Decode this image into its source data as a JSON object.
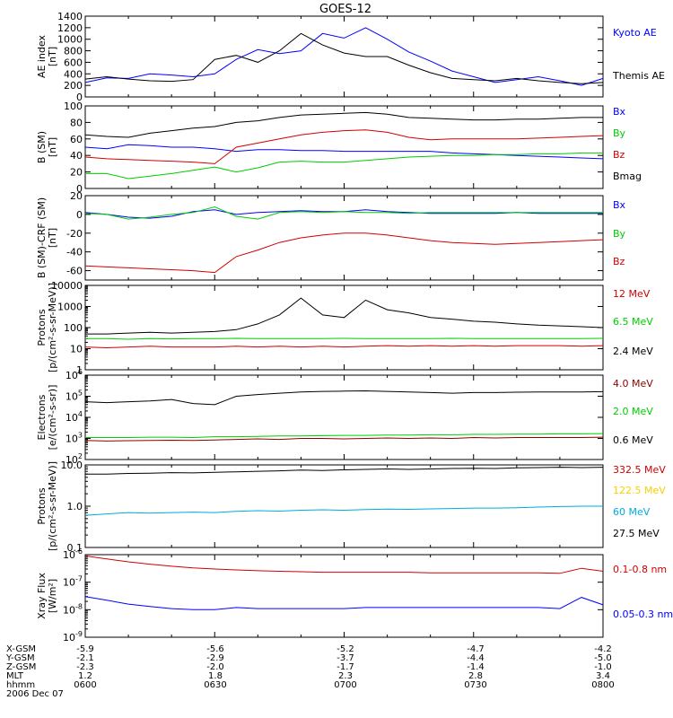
{
  "title": "GOES-12",
  "footer": {
    "date": "2006 Dec 07",
    "rows": [
      {
        "label": "X-GSM",
        "values": [
          "-5.9",
          "-5.6",
          "-5.2",
          "-4.7",
          "-4.2"
        ]
      },
      {
        "label": "Y-GSM",
        "values": [
          "-2.1",
          "-2.9",
          "-3.7",
          "-4.4",
          "-5.0"
        ]
      },
      {
        "label": "Z-GSM",
        "values": [
          "-2.3",
          "-2.0",
          "-1.7",
          "-1.4",
          "-1.0"
        ]
      },
      {
        "label": "MLT",
        "values": [
          "1.2",
          "1.8",
          "2.3",
          "2.8",
          "3.4"
        ]
      },
      {
        "label": "hhmm",
        "values": [
          "0600",
          "0630",
          "0700",
          "0730",
          "0800"
        ]
      }
    ]
  },
  "colors": {
    "black": "#000000",
    "blue": "#0000ff",
    "red": "#d00000",
    "green": "#00cc00",
    "cyan": "#00aadd",
    "yellow": "#f5d000",
    "darkred": "#8b0000"
  },
  "chart_data": [
    {
      "type": "line",
      "title": "GOES-12",
      "ylabel": [
        "AE index",
        "[nT]"
      ],
      "ylim": [
        0,
        1400
      ],
      "yticks": [
        {
          "v": 0,
          "label": "0"
        },
        {
          "v": 200,
          "label": "200"
        },
        {
          "v": 400,
          "label": "400"
        },
        {
          "v": 600,
          "label": "600"
        },
        {
          "v": 800,
          "label": "800"
        },
        {
          "v": 1000,
          "label": "1000"
        },
        {
          "v": 1200,
          "label": "1200"
        },
        {
          "v": 1400,
          "label": "1400"
        }
      ],
      "x_minutes": [
        0,
        5,
        10,
        15,
        20,
        25,
        30,
        35,
        40,
        45,
        50,
        55,
        60,
        65,
        70,
        75,
        80,
        85,
        90,
        95,
        100,
        105,
        110,
        115,
        120
      ],
      "series": [
        {
          "name": "Kyoto AE",
          "color": "blue",
          "values": [
            250,
            330,
            320,
            400,
            380,
            350,
            400,
            650,
            820,
            750,
            800,
            1100,
            1020,
            1200,
            1000,
            780,
            620,
            450,
            350,
            250,
            300,
            350,
            280,
            200,
            320
          ]
        },
        {
          "name": "Themis AE",
          "color": "black",
          "values": [
            310,
            350,
            310,
            280,
            270,
            300,
            650,
            720,
            600,
            800,
            1100,
            900,
            760,
            700,
            700,
            550,
            420,
            320,
            300,
            280,
            320,
            280,
            250,
            230,
            250
          ]
        }
      ]
    },
    {
      "type": "line",
      "ylabel": [
        "B (SM)",
        "[nT]"
      ],
      "ylim": [
        0,
        100
      ],
      "yticks": [
        {
          "v": 0,
          "label": "0"
        },
        {
          "v": 20,
          "label": "20"
        },
        {
          "v": 40,
          "label": "40"
        },
        {
          "v": 60,
          "label": "60"
        },
        {
          "v": 80,
          "label": "80"
        },
        {
          "v": 100,
          "label": "100"
        }
      ],
      "x_minutes": [
        0,
        5,
        10,
        15,
        20,
        25,
        30,
        35,
        40,
        45,
        50,
        55,
        60,
        65,
        70,
        75,
        80,
        85,
        90,
        95,
        100,
        105,
        110,
        115,
        120
      ],
      "series": [
        {
          "name": "Bx",
          "color": "blue",
          "values": [
            50,
            48,
            53,
            52,
            50,
            50,
            48,
            45,
            47,
            47,
            46,
            46,
            45,
            45,
            45,
            45,
            45,
            43,
            42,
            41,
            40,
            39,
            38,
            37,
            36
          ]
        },
        {
          "name": "By",
          "color": "green",
          "values": [
            18,
            18,
            12,
            15,
            18,
            22,
            26,
            20,
            25,
            32,
            33,
            32,
            32,
            34,
            36,
            38,
            39,
            40,
            40,
            41,
            41,
            42,
            42,
            43,
            43
          ]
        },
        {
          "name": "Bz",
          "color": "red",
          "values": [
            38,
            36,
            35,
            34,
            33,
            32,
            30,
            50,
            55,
            60,
            65,
            68,
            70,
            71,
            68,
            62,
            59,
            60,
            60,
            60,
            60,
            61,
            62,
            63,
            64
          ]
        },
        {
          "name": "Bmag",
          "color": "black",
          "values": [
            65,
            63,
            62,
            67,
            70,
            73,
            75,
            80,
            82,
            86,
            89,
            90,
            91,
            92,
            90,
            86,
            85,
            84,
            83,
            83,
            84,
            84,
            85,
            86,
            86
          ]
        }
      ]
    },
    {
      "type": "line",
      "ylabel": [
        "B (SM)-CRF (SM)",
        "[nT]"
      ],
      "ylim": [
        -70,
        20
      ],
      "yticks": [
        {
          "v": -60,
          "label": "-60"
        },
        {
          "v": -40,
          "label": "-40"
        },
        {
          "v": -20,
          "label": "-20"
        },
        {
          "v": 0,
          "label": "0"
        },
        {
          "v": 20,
          "label": "20"
        }
      ],
      "x_minutes": [
        0,
        5,
        10,
        15,
        20,
        25,
        30,
        35,
        40,
        45,
        50,
        55,
        60,
        65,
        70,
        75,
        80,
        85,
        90,
        95,
        100,
        105,
        110,
        115,
        120
      ],
      "series": [
        {
          "name": "Bx",
          "color": "blue",
          "values": [
            2,
            0,
            -3,
            -4,
            -2,
            3,
            5,
            0,
            2,
            3,
            4,
            3,
            3,
            5,
            3,
            2,
            1,
            1,
            1,
            1,
            2,
            1,
            1,
            1,
            1
          ]
        },
        {
          "name": "By",
          "color": "green",
          "values": [
            1,
            0,
            -5,
            -3,
            0,
            2,
            8,
            -2,
            -5,
            2,
            3,
            2,
            3,
            2,
            2,
            1,
            2,
            2,
            2,
            2,
            2,
            2,
            2,
            2,
            2
          ]
        },
        {
          "name": "Bz",
          "color": "red",
          "values": [
            -55,
            -56,
            -57,
            -58,
            -59,
            -60,
            -62,
            -45,
            -38,
            -30,
            -25,
            -22,
            -20,
            -20,
            -22,
            -25,
            -28,
            -30,
            -31,
            -32,
            -31,
            -30,
            -29,
            -28,
            -27
          ]
        }
      ]
    },
    {
      "type": "line",
      "scale": "log",
      "ylabel": [
        "Protons",
        "[p/(cm²-s-sr-MeV)]"
      ],
      "ylim": [
        1,
        10000
      ],
      "yticks": [
        {
          "v": 1,
          "label": "1"
        },
        {
          "v": 10,
          "label": "10"
        },
        {
          "v": 100,
          "label": "100"
        },
        {
          "v": 1000,
          "label": "1000"
        },
        {
          "v": 10000,
          "label": "10000"
        }
      ],
      "x_minutes": [
        0,
        5,
        10,
        15,
        20,
        25,
        30,
        35,
        40,
        45,
        50,
        55,
        60,
        65,
        70,
        75,
        80,
        85,
        90,
        95,
        100,
        105,
        110,
        115,
        120
      ],
      "series": [
        {
          "name": "12 MeV",
          "color": "red",
          "values": [
            12,
            11,
            12,
            13,
            12,
            12,
            12,
            13,
            12,
            13,
            12,
            13,
            12,
            13,
            14,
            13,
            14,
            13,
            14,
            13,
            14,
            14,
            14,
            13,
            14
          ]
        },
        {
          "name": "6.5 MeV",
          "color": "green",
          "values": [
            30,
            30,
            28,
            30,
            29,
            30,
            30,
            31,
            30,
            30,
            30,
            30,
            31,
            30,
            30,
            30,
            30,
            31,
            30,
            30,
            30,
            30,
            30,
            30,
            31
          ]
        },
        {
          "name": "2.4 MeV",
          "color": "black",
          "values": [
            50,
            50,
            55,
            60,
            55,
            60,
            65,
            80,
            150,
            400,
            2500,
            400,
            300,
            2000,
            700,
            500,
            300,
            250,
            200,
            180,
            150,
            130,
            120,
            110,
            100
          ]
        }
      ]
    },
    {
      "type": "line",
      "scale": "log",
      "ylabel": [
        "Electrons",
        "[e/(cm²-s-sr)]"
      ],
      "ylim": [
        100,
        1000000
      ],
      "yticks": [
        {
          "v": 100,
          "label": "10",
          "exp": "2"
        },
        {
          "v": 1000,
          "label": "10",
          "exp": "3"
        },
        {
          "v": 10000,
          "label": "10",
          "exp": "4"
        },
        {
          "v": 100000,
          "label": "10",
          "exp": "5"
        },
        {
          "v": 1000000,
          "label": "10",
          "exp": "6"
        }
      ],
      "x_minutes": [
        0,
        5,
        10,
        15,
        20,
        25,
        30,
        35,
        40,
        45,
        50,
        55,
        60,
        65,
        70,
        75,
        80,
        85,
        90,
        95,
        100,
        105,
        110,
        115,
        120
      ],
      "series": [
        {
          "name": "4.0 MeV",
          "color": "darkred",
          "values": [
            800,
            750,
            780,
            800,
            820,
            800,
            850,
            900,
            950,
            900,
            1000,
            1000,
            950,
            1000,
            1050,
            1000,
            1050,
            1000,
            1100,
            1050,
            1100,
            1100,
            1100,
            1100,
            1150
          ]
        },
        {
          "name": "2.0 MeV",
          "color": "green",
          "values": [
            1100,
            1100,
            1100,
            1150,
            1150,
            1100,
            1200,
            1200,
            1250,
            1300,
            1300,
            1350,
            1400,
            1400,
            1450,
            1450,
            1500,
            1500,
            1550,
            1550,
            1600,
            1600,
            1650,
            1650,
            1700
          ]
        },
        {
          "name": "0.6 MeV",
          "color": "black",
          "values": [
            55000,
            50000,
            55000,
            60000,
            70000,
            45000,
            40000,
            100000,
            120000,
            140000,
            160000,
            170000,
            175000,
            180000,
            170000,
            160000,
            150000,
            140000,
            150000,
            150000,
            155000,
            160000,
            160000,
            160000,
            165000
          ]
        }
      ]
    },
    {
      "type": "line",
      "scale": "log",
      "ylabel": [
        "Protons",
        "[p/(cm²-s-sr-MeV)]"
      ],
      "ylim": [
        0.1,
        10
      ],
      "yticks": [
        {
          "v": 0.1,
          "label": "0.1"
        },
        {
          "v": 1,
          "label": "1.0"
        },
        {
          "v": 10,
          "label": "10.0"
        }
      ],
      "x_minutes": [
        0,
        5,
        10,
        15,
        20,
        25,
        30,
        35,
        40,
        45,
        50,
        55,
        60,
        65,
        70,
        75,
        80,
        85,
        90,
        95,
        100,
        105,
        110,
        115,
        120
      ],
      "series": [
        {
          "name": "332.5 MeV",
          "color": "red",
          "values": []
        },
        {
          "name": "122.5 MeV",
          "color": "yellow",
          "values": []
        },
        {
          "name": "60 MeV",
          "color": "cyan",
          "values": [
            0.6,
            0.65,
            0.7,
            0.68,
            0.7,
            0.72,
            0.7,
            0.75,
            0.78,
            0.76,
            0.8,
            0.82,
            0.8,
            0.83,
            0.85,
            0.84,
            0.86,
            0.88,
            0.9,
            0.9,
            0.92,
            0.95,
            0.98,
            1.0,
            1.0
          ]
        },
        {
          "name": "27.5 MeV",
          "color": "black",
          "values": [
            6.0,
            6.0,
            6.2,
            6.3,
            6.5,
            6.4,
            6.6,
            6.8,
            7.0,
            7.2,
            7.5,
            7.3,
            7.6,
            7.8,
            8.0,
            7.8,
            8.0,
            8.2,
            8.3,
            8.2,
            8.5,
            8.6,
            8.8,
            8.6,
            8.8
          ]
        }
      ]
    },
    {
      "type": "line",
      "scale": "log",
      "ylabel": [
        "Xray Flux",
        "[W/m²]"
      ],
      "ylim": [
        1e-09,
        1e-06
      ],
      "yticks": [
        {
          "v": 1e-09,
          "label": "10",
          "exp": "-9"
        },
        {
          "v": 1e-08,
          "label": "10",
          "exp": "-8"
        },
        {
          "v": 1e-07,
          "label": "10",
          "exp": "-7"
        },
        {
          "v": 1e-06,
          "label": "10",
          "exp": "-6"
        }
      ],
      "x_minutes": [
        0,
        5,
        10,
        15,
        20,
        25,
        30,
        35,
        40,
        45,
        50,
        55,
        60,
        65,
        70,
        75,
        80,
        85,
        90,
        95,
        100,
        105,
        110,
        115,
        120
      ],
      "series": [
        {
          "name": "0.1-0.8 nm",
          "color": "red",
          "values": [
            9e-07,
            7e-07,
            5.5e-07,
            4.5e-07,
            3.8e-07,
            3.3e-07,
            3e-07,
            2.8e-07,
            2.6e-07,
            2.5e-07,
            2.4e-07,
            2.3e-07,
            2.3e-07,
            2.3e-07,
            2.3e-07,
            2.3e-07,
            2.2e-07,
            2.2e-07,
            2.2e-07,
            2.2e-07,
            2.2e-07,
            2.2e-07,
            2.1e-07,
            3.2e-07,
            2.5e-07
          ]
        },
        {
          "name": "0.05-0.3 nm",
          "color": "blue",
          "values": [
            3e-08,
            2.2e-08,
            1.6e-08,
            1.3e-08,
            1.1e-08,
            1e-08,
            1e-08,
            1.2e-08,
            1.1e-08,
            1.1e-08,
            1.1e-08,
            1.1e-08,
            1.1e-08,
            1.2e-08,
            1.2e-08,
            1.2e-08,
            1.2e-08,
            1.2e-08,
            1.2e-08,
            1.2e-08,
            1.2e-08,
            1.2e-08,
            1.1e-08,
            2.8e-08,
            1.5e-08
          ]
        }
      ]
    }
  ]
}
